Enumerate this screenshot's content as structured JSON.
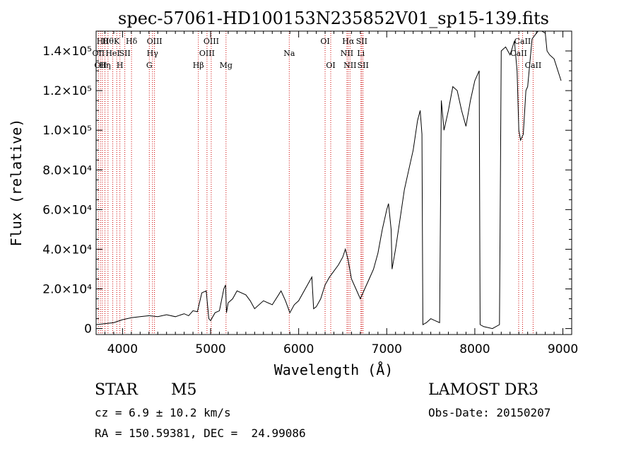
{
  "chart_data": {
    "type": "line",
    "title": "spec-57061-HD100153N235852V01_sp15-139.fits",
    "xlabel": "Wavelength (Å)",
    "ylabel": "Flux (relative)",
    "xlim": [
      3700,
      9100
    ],
    "ylim": [
      -3000,
      150000
    ],
    "xticks": [
      4000,
      5000,
      6000,
      7000,
      8000,
      9000
    ],
    "xtick_labels": [
      "4000",
      "5000",
      "6000",
      "7000",
      "8000",
      "9000"
    ],
    "ytick_labels": [
      {
        "value": 0,
        "label": "0"
      },
      {
        "value": 20000,
        "label": "2.0×10⁴"
      },
      {
        "value": 40000,
        "label": "4.0×10⁴"
      },
      {
        "value": 60000,
        "label": "6.0×10⁴"
      },
      {
        "value": 80000,
        "label": "8.0×10⁴"
      },
      {
        "value": 100000,
        "label": "1.0×10⁵"
      },
      {
        "value": 120000,
        "label": "1.2×10⁵"
      },
      {
        "value": 140000,
        "label": "1.4×10⁵"
      }
    ],
    "spectrum": {
      "x": [
        3700,
        3800,
        3900,
        4000,
        4100,
        4200,
        4300,
        4400,
        4500,
        4600,
        4700,
        4750,
        4800,
        4850,
        4900,
        4950,
        4980,
        5000,
        5050,
        5100,
        5150,
        5170,
        5180,
        5200,
        5250,
        5300,
        5400,
        5450,
        5500,
        5600,
        5700,
        5800,
        5850,
        5900,
        5950,
        6000,
        6100,
        6150,
        6170,
        6200,
        6250,
        6300,
        6350,
        6400,
        6450,
        6500,
        6530,
        6560,
        6600,
        6650,
        6700,
        6750,
        6800,
        6850,
        6900,
        6950,
        7000,
        7020,
        7050,
        7060,
        7100,
        7150,
        7200,
        7250,
        7300,
        7350,
        7380,
        7400,
        7410,
        7450,
        7500,
        7550,
        7600,
        7620,
        7650,
        7700,
        7750,
        7800,
        7850,
        7900,
        7950,
        8000,
        8050,
        8060,
        8100,
        8200,
        8280,
        8300,
        8350,
        8400,
        8450,
        8480,
        8500,
        8520,
        8550,
        8580,
        8600,
        8650,
        8700,
        8720,
        8760,
        8800,
        8820,
        8850,
        8900,
        8980
      ],
      "y": [
        2000,
        2500,
        3000,
        4500,
        5500,
        6000,
        6500,
        6000,
        7000,
        6000,
        7500,
        6500,
        9000,
        8500,
        18000,
        19000,
        5000,
        4000,
        8000,
        9000,
        20000,
        22000,
        8000,
        13000,
        15000,
        19000,
        17000,
        14000,
        10000,
        14000,
        12000,
        19000,
        14000,
        8000,
        12000,
        14000,
        22000,
        26000,
        10000,
        11000,
        15000,
        22000,
        26000,
        29000,
        32000,
        36000,
        40000,
        35000,
        25000,
        20000,
        15000,
        20000,
        25000,
        30000,
        38000,
        50000,
        60000,
        63000,
        50000,
        30000,
        40000,
        55000,
        70000,
        80000,
        90000,
        105000,
        110000,
        98000,
        2000,
        3000,
        5000,
        4000,
        3000,
        115000,
        100000,
        110000,
        122000,
        120000,
        110000,
        102000,
        115000,
        125000,
        130000,
        2000,
        1000,
        0,
        2000,
        140000,
        142000,
        138000,
        145000,
        130000,
        100000,
        95000,
        98000,
        120000,
        122000,
        146000,
        149000,
        151000,
        151000,
        149000,
        140000,
        138000,
        136000,
        125000
      ]
    },
    "lines": [
      {
        "x": 3727,
        "label": "OII",
        "row": 2
      },
      {
        "x": 3750,
        "label": "OII",
        "row": 3
      },
      {
        "x": 3771,
        "label": "Hθ",
        "row": 1
      },
      {
        "x": 3800,
        "label": "Hη",
        "row": 3
      },
      {
        "x": 3835,
        "label": "Hθ",
        "row": 1
      },
      {
        "x": 3889,
        "label": "HeI",
        "row": 2
      },
      {
        "x": 3934,
        "label": "K",
        "row": 1
      },
      {
        "x": 3970,
        "label": "H",
        "row": 3
      },
      {
        "x": 4026,
        "label": "SII",
        "row": 2
      },
      {
        "x": 4102,
        "label": "Hδ",
        "row": 1
      },
      {
        "x": 4304,
        "label": "G",
        "row": 3
      },
      {
        "x": 4340,
        "label": "Hγ",
        "row": 2
      },
      {
        "x": 4363,
        "label": "OIII",
        "row": 1
      },
      {
        "x": 4861,
        "label": "Hβ",
        "row": 3
      },
      {
        "x": 4959,
        "label": "OIII",
        "row": 2
      },
      {
        "x": 5007,
        "label": "OIII",
        "row": 1
      },
      {
        "x": 5175,
        "label": "Mg",
        "row": 3
      },
      {
        "x": 5893,
        "label": "Na",
        "row": 2
      },
      {
        "x": 6300,
        "label": "OI",
        "row": 1
      },
      {
        "x": 6364,
        "label": "OI",
        "row": 3
      },
      {
        "x": 6548,
        "label": "NII",
        "row": 2
      },
      {
        "x": 6563,
        "label": "Hα",
        "row": 1
      },
      {
        "x": 6583,
        "label": "NII",
        "row": 3
      },
      {
        "x": 6707,
        "label": "Li",
        "row": 2
      },
      {
        "x": 6716,
        "label": "SII",
        "row": 1
      },
      {
        "x": 6731,
        "label": "SII",
        "row": 3
      },
      {
        "x": 8498,
        "label": "CaII",
        "row": 2
      },
      {
        "x": 8542,
        "label": "CaII",
        "row": 1
      },
      {
        "x": 8662,
        "label": "CaII",
        "row": 3
      }
    ]
  },
  "info": {
    "class_label": "STAR",
    "subclass": "M5",
    "cz": "cz = 6.9 ± 10.2 km/s",
    "coords": "RA = 150.59381, DEC =  24.99086",
    "survey": "LAMOST DR3",
    "obs_date": "Obs-Date: 20150207"
  },
  "colors": {
    "axis": "#000000",
    "line_marker": "#cc0000",
    "spectrum": "#000000"
  }
}
